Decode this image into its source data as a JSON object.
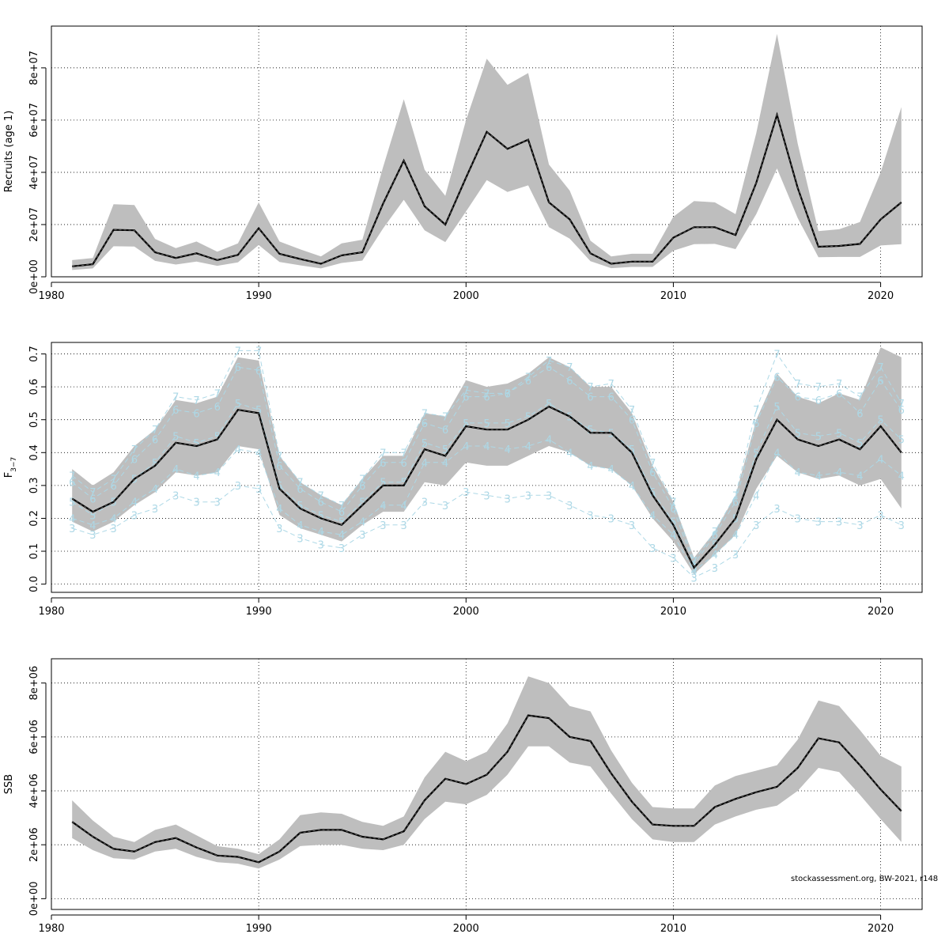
{
  "footer": "stockassessment.org, BW-2021, r148",
  "colors": {
    "band": "#bebebe",
    "line": "#000000",
    "grid": "#000000",
    "agelines": "#add8e6"
  },
  "chart_data": [
    {
      "type": "line",
      "ylabel": "Recruits (age 1)",
      "xlim": [
        1980,
        2022
      ],
      "ylim": [
        0,
        96000000.0
      ],
      "x_ticks": [
        1980,
        1990,
        2000,
        2010,
        2020
      ],
      "x_tick_labels": [
        "1980",
        "1990",
        "2000",
        "2010",
        "2020"
      ],
      "y_ticks": [
        0,
        20000000.0,
        40000000.0,
        60000000.0,
        80000000.0
      ],
      "y_tick_labels": [
        "0e+00",
        "2e+07",
        "4e+07",
        "6e+07",
        "8e+07"
      ],
      "grid": true,
      "x": [
        1981,
        1982,
        1983,
        1984,
        1985,
        1986,
        1987,
        1988,
        1989,
        1990,
        1991,
        1992,
        1993,
        1994,
        1995,
        1996,
        1997,
        1998,
        1999,
        2000,
        2001,
        2002,
        2003,
        2004,
        2005,
        2006,
        2007,
        2008,
        2009,
        2010,
        2011,
        2012,
        2013,
        2014,
        2015,
        2016,
        2017,
        2018,
        2019,
        2020,
        2021
      ],
      "series": [
        {
          "role": "estimate",
          "values": [
            4000000.0,
            4800000.0,
            18000000.0,
            17800000.0,
            9400000.0,
            7200000.0,
            9000000.0,
            6400000.0,
            8400000.0,
            18600000.0,
            8800000.0,
            6800000.0,
            5000000.0,
            8200000.0,
            9400000.0,
            28000000.0,
            44500000.0,
            27000000.0,
            20000000.0,
            38000000.0,
            55500000.0,
            49000000.0,
            52500000.0,
            28500000.0,
            22000000.0,
            9000000.0,
            5000000.0,
            5800000.0,
            5800000.0,
            15000000.0,
            19000000.0,
            19000000.0,
            16000000.0,
            36000000.0,
            62000000.0,
            34000000.0,
            11500000.0,
            11800000.0,
            12600000.0,
            22000000.0,
            28500000.0
          ]
        },
        {
          "role": "upper",
          "values": [
            6400000.0,
            7200000.0,
            27800000.0,
            27500000.0,
            14500000.0,
            11000000.0,
            13500000.0,
            9600000.0,
            12800000.0,
            28500000.0,
            13500000.0,
            10500000.0,
            7800000.0,
            12800000.0,
            14200000.0,
            42000000.0,
            68000000.0,
            41000000.0,
            31000000.0,
            60000000.0,
            83500000.0,
            73500000.0,
            78000000.0,
            43000000.0,
            33000000.0,
            13800000.0,
            7800000.0,
            8800000.0,
            8800000.0,
            23000000.0,
            29000000.0,
            28500000.0,
            24000000.0,
            55000000.0,
            93000000.0,
            51000000.0,
            17500000.0,
            18200000.0,
            21000000.0,
            40000000.0,
            65000000.0
          ]
        },
        {
          "role": "lower",
          "values": [
            2600000.0,
            3200000.0,
            11700000.0,
            11600000.0,
            6100000.0,
            4700000.0,
            5800000.0,
            4200000.0,
            5500000.0,
            12200000.0,
            5700000.0,
            4400000.0,
            3200000.0,
            5300000.0,
            6200000.0,
            18500000.0,
            29500000.0,
            17800000.0,
            13300000.0,
            25000000.0,
            37000000.0,
            32500000.0,
            35000000.0,
            19000000.0,
            14600000.0,
            6000000.0,
            3300000.0,
            3800000.0,
            3800000.0,
            10000000.0,
            12500000.0,
            12600000.0,
            10600000.0,
            24000000.0,
            41500000.0,
            22500000.0,
            7500000.0,
            7600000.0,
            7600000.0,
            12000000.0,
            12500000.0
          ]
        }
      ]
    },
    {
      "type": "line",
      "ylabel": "F",
      "ylabel_subscript": "3−7",
      "xlim": [
        1980,
        2022
      ],
      "ylim": [
        -0.025,
        0.735
      ],
      "x_ticks": [
        1980,
        1990,
        2000,
        2010,
        2020
      ],
      "x_tick_labels": [
        "1980",
        "1990",
        "2000",
        "2010",
        "2020"
      ],
      "y_ticks": [
        0,
        0.1,
        0.2,
        0.3,
        0.4,
        0.5,
        0.6,
        0.7
      ],
      "y_tick_labels": [
        "0.0",
        "0.1",
        "0.2",
        "0.3",
        "0.4",
        "0.5",
        "0.6",
        "0.7"
      ],
      "grid": true,
      "x": [
        1981,
        1982,
        1983,
        1984,
        1985,
        1986,
        1987,
        1988,
        1989,
        1990,
        1991,
        1992,
        1993,
        1994,
        1995,
        1996,
        1997,
        1998,
        1999,
        2000,
        2001,
        2002,
        2003,
        2004,
        2005,
        2006,
        2007,
        2008,
        2009,
        2010,
        2011,
        2012,
        2013,
        2014,
        2015,
        2016,
        2017,
        2018,
        2019,
        2020,
        2021
      ],
      "series": [
        {
          "role": "estimate",
          "values": [
            0.26,
            0.22,
            0.25,
            0.32,
            0.36,
            0.43,
            0.42,
            0.44,
            0.53,
            0.52,
            0.29,
            0.23,
            0.2,
            0.18,
            0.24,
            0.3,
            0.3,
            0.41,
            0.39,
            0.48,
            0.47,
            0.47,
            0.5,
            0.54,
            0.51,
            0.46,
            0.46,
            0.4,
            0.27,
            0.18,
            0.05,
            0.12,
            0.2,
            0.38,
            0.5,
            0.44,
            0.42,
            0.44,
            0.41,
            0.48,
            0.4
          ]
        },
        {
          "role": "upper",
          "values": [
            0.35,
            0.3,
            0.34,
            0.42,
            0.47,
            0.56,
            0.55,
            0.57,
            0.69,
            0.68,
            0.39,
            0.31,
            0.27,
            0.24,
            0.32,
            0.39,
            0.39,
            0.52,
            0.51,
            0.62,
            0.6,
            0.61,
            0.64,
            0.69,
            0.66,
            0.6,
            0.6,
            0.52,
            0.36,
            0.25,
            0.08,
            0.16,
            0.27,
            0.5,
            0.64,
            0.57,
            0.55,
            0.58,
            0.56,
            0.72,
            0.69
          ]
        },
        {
          "role": "lower",
          "values": [
            0.19,
            0.16,
            0.19,
            0.24,
            0.28,
            0.34,
            0.33,
            0.34,
            0.42,
            0.41,
            0.21,
            0.17,
            0.15,
            0.13,
            0.18,
            0.22,
            0.22,
            0.31,
            0.3,
            0.37,
            0.36,
            0.36,
            0.39,
            0.42,
            0.4,
            0.36,
            0.35,
            0.3,
            0.2,
            0.13,
            0.03,
            0.09,
            0.15,
            0.29,
            0.39,
            0.34,
            0.32,
            0.33,
            0.3,
            0.32,
            0.23
          ]
        }
      ],
      "age_lines": [
        {
          "name": "3",
          "values": [
            0.17,
            0.15,
            0.17,
            0.21,
            0.23,
            0.27,
            0.25,
            0.25,
            0.3,
            0.29,
            0.17,
            0.14,
            0.12,
            0.11,
            0.15,
            0.18,
            0.18,
            0.25,
            0.24,
            0.28,
            0.27,
            0.26,
            0.27,
            0.27,
            0.24,
            0.21,
            0.2,
            0.18,
            0.11,
            0.08,
            0.02,
            0.05,
            0.09,
            0.18,
            0.23,
            0.2,
            0.19,
            0.19,
            0.18,
            0.21,
            0.18
          ]
        },
        {
          "name": "4",
          "values": [
            0.2,
            0.18,
            0.2,
            0.25,
            0.29,
            0.35,
            0.33,
            0.34,
            0.41,
            0.4,
            0.23,
            0.18,
            0.16,
            0.15,
            0.19,
            0.24,
            0.24,
            0.37,
            0.37,
            0.42,
            0.42,
            0.41,
            0.42,
            0.44,
            0.4,
            0.36,
            0.35,
            0.3,
            0.21,
            0.15,
            0.04,
            0.09,
            0.15,
            0.27,
            0.4,
            0.34,
            0.33,
            0.34,
            0.33,
            0.38,
            0.33
          ]
        },
        {
          "name": "5",
          "values": [
            0.25,
            0.21,
            0.25,
            0.32,
            0.37,
            0.45,
            0.43,
            0.45,
            0.55,
            0.53,
            0.3,
            0.24,
            0.21,
            0.19,
            0.25,
            0.31,
            0.31,
            0.43,
            0.41,
            0.49,
            0.49,
            0.49,
            0.51,
            0.55,
            0.51,
            0.47,
            0.46,
            0.41,
            0.28,
            0.19,
            0.05,
            0.12,
            0.2,
            0.4,
            0.54,
            0.46,
            0.45,
            0.46,
            0.43,
            0.5,
            0.44
          ]
        },
        {
          "name": "6",
          "values": [
            0.31,
            0.26,
            0.3,
            0.38,
            0.44,
            0.53,
            0.52,
            0.54,
            0.66,
            0.65,
            0.36,
            0.29,
            0.25,
            0.22,
            0.3,
            0.37,
            0.37,
            0.49,
            0.47,
            0.57,
            0.57,
            0.58,
            0.62,
            0.66,
            0.62,
            0.57,
            0.57,
            0.5,
            0.34,
            0.23,
            0.06,
            0.15,
            0.25,
            0.49,
            0.63,
            0.57,
            0.56,
            0.58,
            0.52,
            0.62,
            0.53
          ]
        },
        {
          "name": "7",
          "values": [
            0.33,
            0.28,
            0.32,
            0.41,
            0.47,
            0.57,
            0.56,
            0.58,
            0.71,
            0.71,
            0.39,
            0.31,
            0.27,
            0.24,
            0.32,
            0.4,
            0.4,
            0.52,
            0.51,
            0.59,
            0.58,
            0.58,
            0.63,
            0.68,
            0.66,
            0.6,
            0.61,
            0.53,
            0.37,
            0.25,
            0.07,
            0.16,
            0.27,
            0.53,
            0.7,
            0.61,
            0.6,
            0.61,
            0.57,
            0.66,
            0.55
          ]
        }
      ]
    },
    {
      "type": "line",
      "ylabel": "SSB",
      "xlim": [
        1980,
        2022
      ],
      "ylim": [
        -400000.0,
        8900000.0
      ],
      "x_ticks": [
        1980,
        1990,
        2000,
        2010,
        2020
      ],
      "x_tick_labels": [
        "1980",
        "1990",
        "2000",
        "2010",
        "2020"
      ],
      "y_ticks": [
        0,
        2000000.0,
        4000000.0,
        6000000.0,
        8000000.0
      ],
      "y_tick_labels": [
        "0e+00",
        "2e+06",
        "4e+06",
        "6e+06",
        "8e+06"
      ],
      "grid": true,
      "x": [
        1981,
        1982,
        1983,
        1984,
        1985,
        1986,
        1987,
        1988,
        1989,
        1990,
        1991,
        1992,
        1993,
        1994,
        1995,
        1996,
        1997,
        1998,
        1999,
        2000,
        2001,
        2002,
        2003,
        2004,
        2005,
        2006,
        2007,
        2008,
        2009,
        2010,
        2011,
        2012,
        2013,
        2014,
        2015,
        2016,
        2017,
        2018,
        2019,
        2020,
        2021
      ],
      "series": [
        {
          "role": "estimate",
          "values": [
            2850000.0,
            2300000.0,
            1850000.0,
            1750000.0,
            2100000.0,
            2250000.0,
            1900000.0,
            1600000.0,
            1550000.0,
            1350000.0,
            1750000.0,
            2450000.0,
            2550000.0,
            2550000.0,
            2300000.0,
            2200000.0,
            2500000.0,
            3650000.0,
            4450000.0,
            4250000.0,
            4600000.0,
            5450000.0,
            6800000.0,
            6700000.0,
            6000000.0,
            5850000.0,
            4650000.0,
            3600000.0,
            2750000.0,
            2700000.0,
            2700000.0,
            3400000.0,
            3700000.0,
            3950000.0,
            4150000.0,
            4850000.0,
            5950000.0,
            5800000.0,
            4950000.0,
            4050000.0,
            3250000.0
          ]
        },
        {
          "role": "upper",
          "values": [
            3650000.0,
            2900000.0,
            2300000.0,
            2100000.0,
            2550000.0,
            2750000.0,
            2350000.0,
            1950000.0,
            1850000.0,
            1650000.0,
            2200000.0,
            3100000.0,
            3200000.0,
            3150000.0,
            2850000.0,
            2700000.0,
            3050000.0,
            4500000.0,
            5450000.0,
            5100000.0,
            5450000.0,
            6500000.0,
            8250000.0,
            8000000.0,
            7150000.0,
            6950000.0,
            5500000.0,
            4300000.0,
            3400000.0,
            3350000.0,
            3350000.0,
            4200000.0,
            4550000.0,
            4750000.0,
            4950000.0,
            5900000.0,
            7350000.0,
            7150000.0,
            6250000.0,
            5300000.0,
            4900000.0
          ]
        },
        {
          "role": "lower",
          "values": [
            2250000.0,
            1800000.0,
            1500000.0,
            1450000.0,
            1750000.0,
            1850000.0,
            1550000.0,
            1350000.0,
            1300000.0,
            1120000.0,
            1450000.0,
            1950000.0,
            2000000.0,
            2000000.0,
            1850000.0,
            1800000.0,
            2000000.0,
            2950000.0,
            3600000.0,
            3500000.0,
            3850000.0,
            4600000.0,
            5650000.0,
            5650000.0,
            5050000.0,
            4900000.0,
            3900000.0,
            2950000.0,
            2200000.0,
            2100000.0,
            2100000.0,
            2750000.0,
            3050000.0,
            3300000.0,
            3450000.0,
            4000000.0,
            4850000.0,
            4700000.0,
            3850000.0,
            2950000.0,
            2100000.0
          ]
        }
      ]
    }
  ]
}
